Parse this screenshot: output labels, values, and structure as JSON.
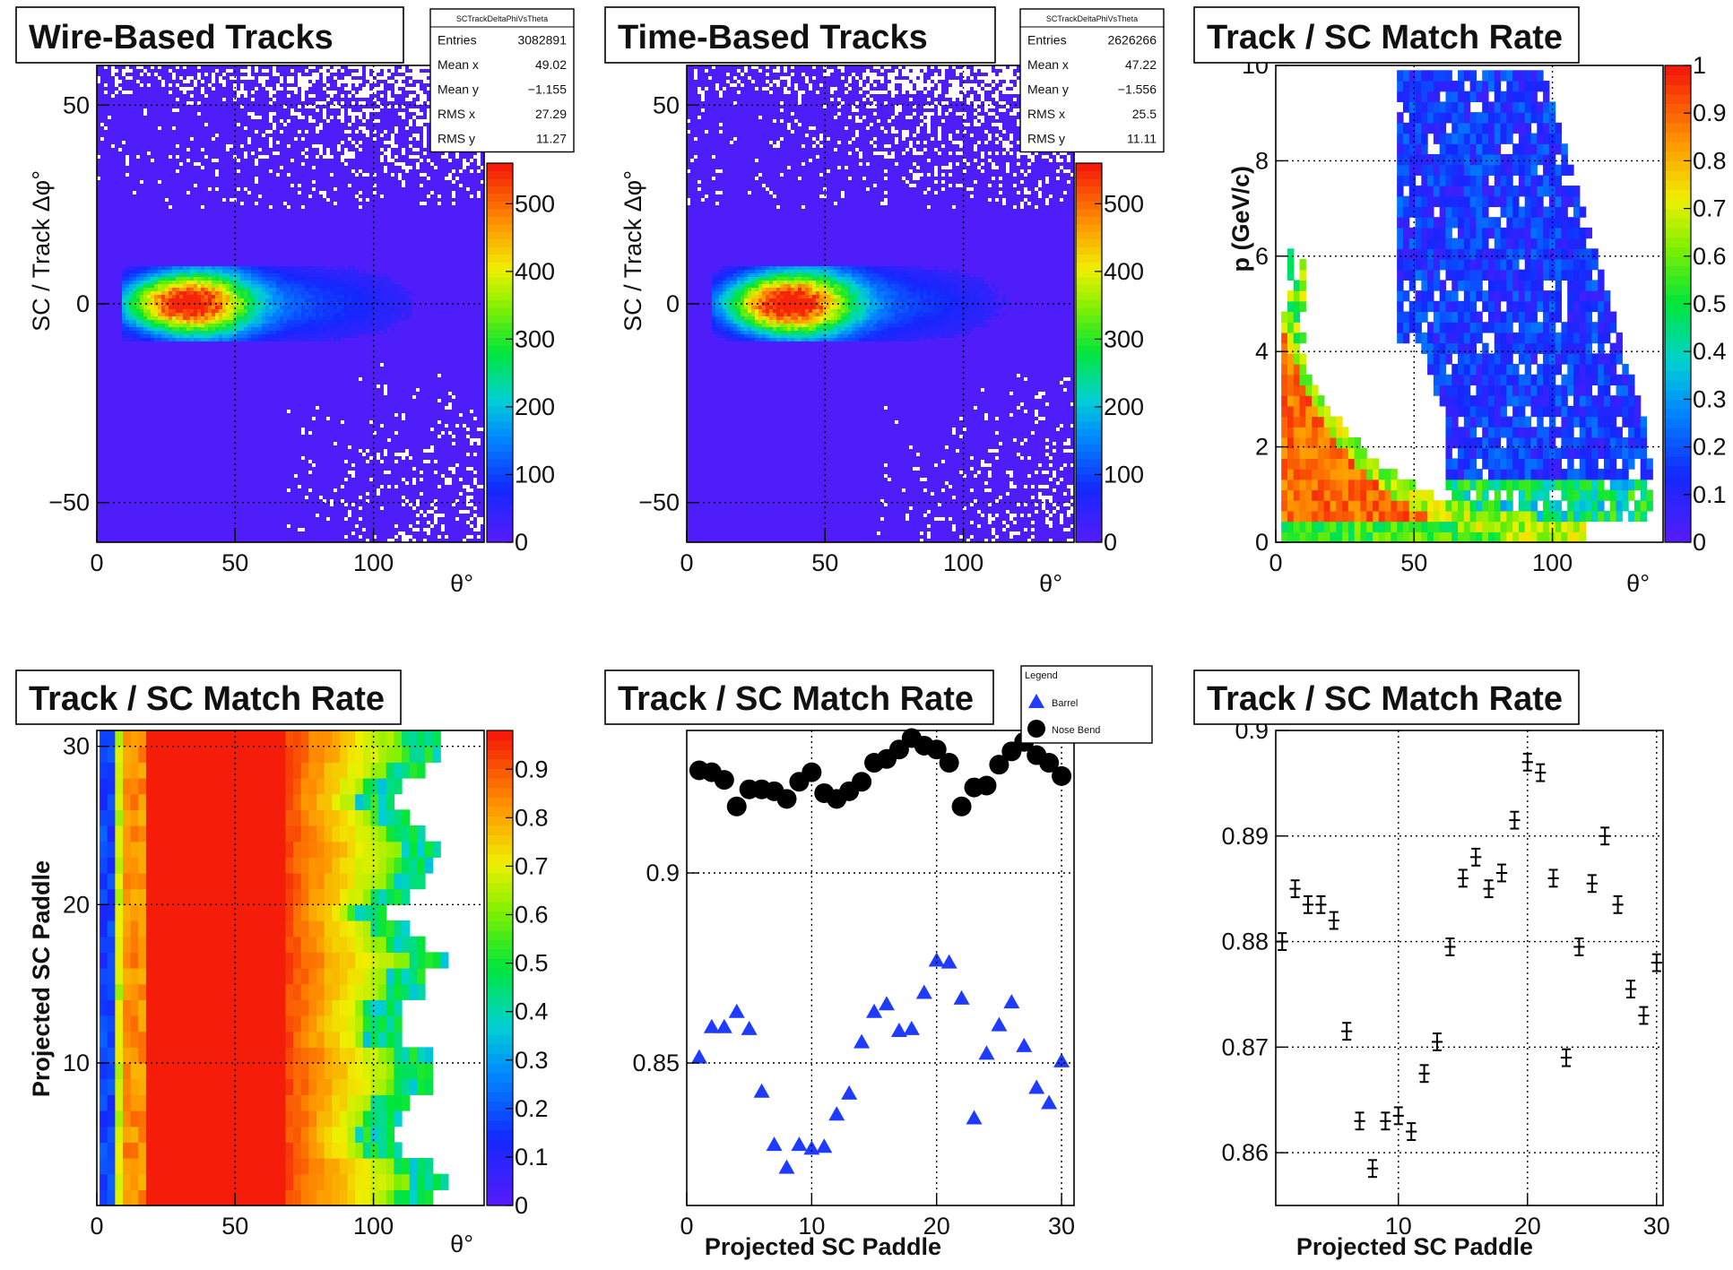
{
  "chart_data": [
    {
      "type": "heatmap",
      "title": "Wire-Based Tracks",
      "xlabel": "θ°",
      "ylabel": "SC / Track Δφ°",
      "xlim": [
        0,
        140
      ],
      "ylim": [
        -60,
        60
      ],
      "xticks": [
        "0",
        "50",
        "100"
      ],
      "yticks": [
        "−50",
        "0",
        "50"
      ],
      "colorbar": {
        "min": 0,
        "max": 560,
        "ticks": [
          "0",
          "100",
          "200",
          "300",
          "400",
          "500"
        ]
      },
      "stats": {
        "name": "SCTrackDeltaPhiVsTheta",
        "rows": [
          [
            "Entries",
            "3082891"
          ],
          [
            "Mean x",
            "49.02"
          ],
          [
            "Mean y",
            "−1.155"
          ],
          [
            "RMS x",
            "27.29"
          ],
          [
            "RMS y",
            "11.27"
          ]
        ]
      },
      "grid": true
    },
    {
      "type": "heatmap",
      "title": "Time-Based Tracks",
      "xlabel": "θ°",
      "ylabel": "SC / Track Δφ°",
      "xlim": [
        0,
        140
      ],
      "ylim": [
        -60,
        60
      ],
      "xticks": [
        "0",
        "50",
        "100"
      ],
      "yticks": [
        "−50",
        "0",
        "50"
      ],
      "colorbar": {
        "min": 0,
        "max": 560,
        "ticks": [
          "0",
          "100",
          "200",
          "300",
          "400",
          "500"
        ]
      },
      "stats": {
        "name": "SCTrackDeltaPhiVsTheta",
        "rows": [
          [
            "Entries",
            "2626266"
          ],
          [
            "Mean x",
            "47.22"
          ],
          [
            "Mean y",
            "−1.556"
          ],
          [
            "RMS x",
            "25.5"
          ],
          [
            "RMS y",
            "11.11"
          ]
        ]
      },
      "grid": true
    },
    {
      "type": "heatmap",
      "title": "Track / SC Match Rate",
      "xlabel": "θ°",
      "ylabel": "p (GeV/c)",
      "xlim": [
        0,
        140
      ],
      "ylim": [
        0,
        10
      ],
      "xticks": [
        "0",
        "50",
        "100"
      ],
      "yticks": [
        "0",
        "2",
        "4",
        "6",
        "8",
        "10"
      ],
      "colorbar": {
        "min": 0,
        "max": 1,
        "ticks": [
          "0",
          "0.1",
          "0.2",
          "0.3",
          "0.4",
          "0.5",
          "0.6",
          "0.7",
          "0.8",
          "0.9",
          "1"
        ]
      },
      "grid": true
    },
    {
      "type": "heatmap",
      "title": "Track / SC Match Rate",
      "xlabel": "θ°",
      "ylabel": "Projected SC Paddle",
      "xlim": [
        0,
        140
      ],
      "ylim": [
        1,
        31
      ],
      "xticks": [
        "0",
        "50",
        "100"
      ],
      "yticks": [
        "10",
        "20",
        "30"
      ],
      "colorbar": {
        "min": 0,
        "max": 0.98,
        "ticks": [
          "0",
          "0.1",
          "0.2",
          "0.3",
          "0.4",
          "0.5",
          "0.6",
          "0.7",
          "0.8",
          "0.9"
        ]
      },
      "grid": true
    },
    {
      "type": "scatter",
      "title": "Track / SC Match Rate",
      "xlabel": "Projected SC Paddle",
      "ylabel": "",
      "xlim": [
        0,
        31
      ],
      "ylim": [
        0.8125,
        0.9375
      ],
      "xticks": [
        "0",
        "10",
        "20",
        "30"
      ],
      "yticks": [
        "0.85",
        "0.9"
      ],
      "legend": {
        "title": "Legend",
        "position": "top-right"
      },
      "x": [
        1,
        2,
        3,
        4,
        5,
        6,
        7,
        8,
        9,
        10,
        11,
        12,
        13,
        14,
        15,
        16,
        17,
        18,
        19,
        20,
        21,
        22,
        23,
        24,
        25,
        26,
        27,
        28,
        29,
        30
      ],
      "series": [
        {
          "name": "Barrel",
          "color": "#1f3bff",
          "marker": "triangle",
          "values": [
            0.8515,
            0.8595,
            0.8595,
            0.8635,
            0.859,
            0.8425,
            0.8285,
            0.8225,
            0.8285,
            0.8275,
            0.828,
            0.8365,
            0.842,
            0.8555,
            0.8635,
            0.8655,
            0.8585,
            0.859,
            0.8685,
            0.877,
            0.8765,
            0.867,
            0.8355,
            0.8525,
            0.86,
            0.866,
            0.8545,
            0.8435,
            0.8395,
            0.8505
          ]
        },
        {
          "name": "Nose Bend",
          "color": "#000000",
          "marker": "circle",
          "values": [
            0.927,
            0.9265,
            0.9245,
            0.9175,
            0.922,
            0.922,
            0.9215,
            0.9195,
            0.924,
            0.9265,
            0.921,
            0.9195,
            0.9215,
            0.924,
            0.929,
            0.93,
            0.9325,
            0.9355,
            0.9335,
            0.9325,
            0.929,
            0.9175,
            0.9225,
            0.923,
            0.9285,
            0.932,
            0.9345,
            0.931,
            0.929,
            0.9255
          ]
        }
      ],
      "grid": true
    },
    {
      "type": "scatter",
      "title": "Track / SC Match Rate",
      "xlabel": "Projected SC Paddle",
      "ylabel": "",
      "xlim": [
        0.5,
        30.5
      ],
      "ylim": [
        0.855,
        0.9
      ],
      "xticks": [
        "10",
        "20",
        "30"
      ],
      "yticks": [
        "0.86",
        "0.87",
        "0.88",
        "0.89",
        "0.9"
      ],
      "x": [
        1,
        2,
        3,
        4,
        5,
        6,
        7,
        8,
        9,
        10,
        11,
        12,
        13,
        14,
        15,
        16,
        17,
        18,
        19,
        20,
        21,
        22,
        23,
        24,
        25,
        26,
        27,
        28,
        29,
        30
      ],
      "series": [
        {
          "color": "#000000",
          "marker": "errorbar",
          "values": [
            0.88,
            0.885,
            0.8835,
            0.8835,
            0.882,
            0.8715,
            0.863,
            0.8585,
            0.863,
            0.8635,
            0.862,
            0.8675,
            0.8705,
            0.8795,
            0.886,
            0.888,
            0.885,
            0.8865,
            0.8915,
            0.897,
            0.896,
            0.886,
            0.869,
            0.8795,
            0.8855,
            0.89,
            0.8835,
            0.8755,
            0.873,
            0.878
          ],
          "yerr": 0.0008,
          "xerr": 0.5
        }
      ],
      "grid": true
    }
  ]
}
